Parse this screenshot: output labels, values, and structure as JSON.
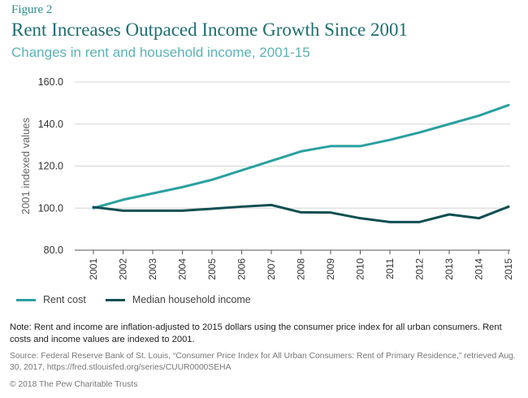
{
  "figure_label": "Figure 2",
  "title": "Rent Increases Outpaced Income Growth Since 2001",
  "subtitle": "Changes in rent and household income, 2001-15",
  "note": "Note: Rent and income are inflation-adjusted to 2015 dollars using the consumer price index for all urban consumers. Rent costs and income values are indexed to 2001.",
  "source": "Source: Federal Reserve Bank of St. Louis, “Consumer Price Index for All Urban Consumers: Rent of Primary Residence,” retrieved Aug. 30, 2017, https://fred.stlouisfed.org/series/CUUR0000SEHA",
  "copyright": "© 2018 The Pew Charitable Trusts",
  "colors": {
    "rent": "#2aa0a0",
    "income": "#0e4f52",
    "grid": "#d6d6d6",
    "axis": "#555555"
  },
  "chart_data": {
    "type": "line",
    "title": "Rent Increases Outpaced Income Growth Since 2001",
    "subtitle": "Changes in rent and household income, 2001-15",
    "xlabel": "",
    "ylabel": "2001 indexed values",
    "categories": [
      "2001",
      "2002",
      "2003",
      "2004",
      "2005",
      "2006",
      "2007",
      "2008",
      "2009",
      "2010",
      "2011",
      "2012",
      "2013",
      "2014",
      "2015"
    ],
    "ylim": [
      80,
      160
    ],
    "yticks": [
      "80.0",
      "100.0",
      "120.0",
      "140.0",
      "160.0"
    ],
    "grid": true,
    "legend_position": "bottom-left",
    "series": [
      {
        "name": "Rent cost",
        "color": "#2aa0a0",
        "values": [
          100.0,
          104.0,
          107.0,
          110.0,
          113.5,
          118.0,
          122.5,
          127.0,
          129.5,
          129.5,
          132.5,
          136.0,
          140.0,
          144.0,
          149.0
        ]
      },
      {
        "name": "Median household income",
        "color": "#0e4f52",
        "values": [
          100.5,
          98.8,
          98.8,
          98.8,
          99.7,
          100.7,
          101.5,
          98.0,
          97.9,
          95.2,
          93.4,
          93.4,
          97.0,
          95.2,
          100.7
        ]
      }
    ]
  }
}
